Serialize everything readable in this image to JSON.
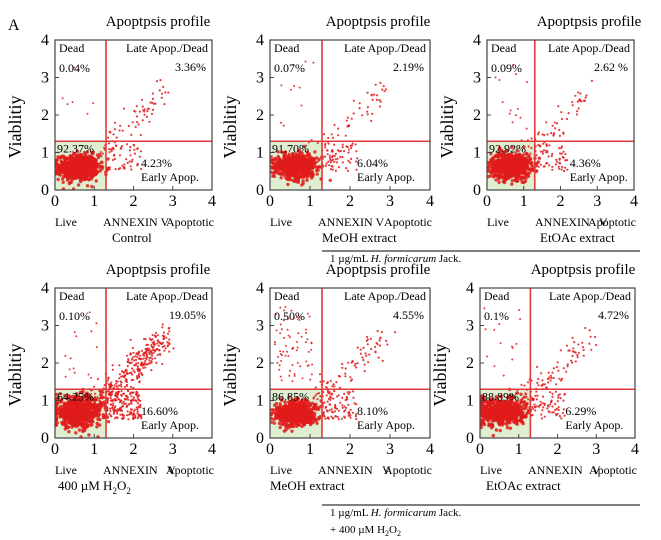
{
  "figure": {
    "panel_label": "A",
    "group_notes": [
      {
        "text": "1 µg/mL ",
        "italic": "H. formicarum",
        "tail": " Jack."
      },
      {
        "text": "1 µg/mL ",
        "italic": "H. formicarum",
        "tail": " Jack.",
        "line2_main": "+ 400 µM H",
        "line2_sub": "2",
        "line2_after": "O",
        "line2_sub2": "2"
      }
    ]
  },
  "colors": {
    "quadrant_line": "#e23a3a",
    "points": "#e01b1b",
    "live_fill": "#dfeed0",
    "frame": "#444444"
  },
  "chart_data": [
    {
      "type": "scatter",
      "title": "Apoptpsis profile",
      "ylabel": "Viablitiy",
      "x_ticks": [
        0,
        1,
        2,
        3,
        4
      ],
      "y_ticks": [
        0,
        1,
        2,
        3,
        4
      ],
      "xlim": [
        0,
        4
      ],
      "ylim": [
        0,
        4
      ],
      "gate": {
        "x": 1.3,
        "y": 1.3
      },
      "x_axis_labels": [
        "Live",
        "ANNEXIN V",
        "Apoptotic"
      ],
      "caption": {
        "main": "Control"
      },
      "quadrants": {
        "ul_label": "Dead",
        "ul_value": "0.04%",
        "ur_label": "Late Apop./Dead",
        "ur_value": "3.36%",
        "ll_value": "92.37%",
        "lr_value": "4.23%",
        "lr_label": "Early Apop."
      },
      "population": {
        "live_center": [
          0.6,
          0.6
        ],
        "spread": [
          0.25,
          0.17
        ],
        "late_tail": 0.034,
        "early": 0.042,
        "dead": 0.0004
      }
    },
    {
      "type": "scatter",
      "title": "Apoptpsis profile",
      "ylabel": "Viablitiy",
      "x_ticks": [
        0,
        1,
        2,
        3,
        4
      ],
      "y_ticks": [
        0,
        1,
        2,
        3,
        4
      ],
      "xlim": [
        0,
        4
      ],
      "ylim": [
        0,
        4
      ],
      "gate": {
        "x": 1.3,
        "y": 1.3
      },
      "x_axis_labels": [
        "Live",
        "ANNEXIN V",
        "Apoptotic"
      ],
      "caption": {
        "main": "MeOH extract"
      },
      "quadrants": {
        "ul_label": "Dead",
        "ul_value": "0.07%",
        "ur_label": "Late Apop./Dead",
        "ur_value": "2.19%",
        "ll_value": "91.70%",
        "lr_value": "6.04%",
        "lr_label": "Early Apop."
      },
      "population": {
        "live_center": [
          0.65,
          0.65
        ],
        "spread": [
          0.25,
          0.16
        ],
        "late_tail": 0.022,
        "early": 0.06,
        "dead": 0.0007
      }
    },
    {
      "type": "scatter",
      "title": "Apoptpsis profile",
      "ylabel": "Viablitiy",
      "x_ticks": [
        0,
        1,
        2,
        3,
        4
      ],
      "y_ticks": [
        0,
        1,
        2,
        3,
        4
      ],
      "xlim": [
        0,
        4
      ],
      "ylim": [
        0,
        4
      ],
      "gate": {
        "x": 1.3,
        "y": 1.3
      },
      "x_axis_labels": [
        "Live",
        "ANNEXIN",
        "V",
        "Apoptotic"
      ],
      "caption": {
        "main": "EtOAc extract"
      },
      "quadrants": {
        "ul_label": "Dead",
        "ul_value": "0.09%",
        "ur_label": "Late Apop./Dead",
        "ur_value": "2.62 %",
        "ll_value": "92.92%",
        "lr_value": "4.36%",
        "lr_label": "Early Apop."
      },
      "population": {
        "live_center": [
          0.65,
          0.65
        ],
        "spread": [
          0.27,
          0.17
        ],
        "late_tail": 0.026,
        "early": 0.044,
        "dead": 0.0009
      }
    },
    {
      "type": "scatter",
      "title": "Apoptpsis profile",
      "ylabel": "Viablitiy",
      "x_ticks": [
        0,
        1,
        2,
        3,
        4
      ],
      "y_ticks": [
        0,
        1,
        2,
        3,
        4
      ],
      "xlim": [
        0,
        4
      ],
      "ylim": [
        0,
        4
      ],
      "gate": {
        "x": 1.3,
        "y": 1.3
      },
      "x_axis_labels": [
        "Live",
        "ANNEXIN",
        "V",
        "Apoptotic"
      ],
      "caption": {
        "main": "400 µM H",
        "sub": "2",
        "after": "O",
        "sub2": "2"
      },
      "quadrants": {
        "ul_label": "Dead",
        "ul_value": "0.10%",
        "ur_label": "Late Apop./Dead",
        "ur_value": "19.05%",
        "ll_value": "64.25%",
        "lr_value": "16.60%",
        "lr_label": "Early Apop."
      },
      "population": {
        "live_center": [
          0.6,
          0.7
        ],
        "spread": [
          0.3,
          0.2
        ],
        "late_tail": 0.19,
        "early": 0.166,
        "dead": 0.001
      }
    },
    {
      "type": "scatter",
      "title": "Apoptpsis profile",
      "ylabel": "Viablitiy",
      "x_ticks": [
        0,
        1,
        2,
        3,
        4
      ],
      "y_ticks": [
        0,
        1,
        2,
        3,
        4
      ],
      "xlim": [
        0,
        4
      ],
      "ylim": [
        0,
        4
      ],
      "gate": {
        "x": 1.3,
        "y": 1.3
      },
      "x_axis_labels": [
        "Live",
        "ANNEXIN",
        "V",
        "Apoptotic"
      ],
      "caption": {
        "main": "MeOH extract"
      },
      "quadrants": {
        "ul_label": "Dead",
        "ul_value": "0.50%",
        "ur_label": "Late Apop./Dead",
        "ur_value": "4.55%",
        "ll_value": "86.85%",
        "lr_value": "8.10%",
        "lr_label": "Early Apop."
      },
      "population": {
        "live_center": [
          0.65,
          0.65
        ],
        "spread": [
          0.25,
          0.15
        ],
        "late_tail": 0.045,
        "early": 0.081,
        "dead": 0.005
      }
    },
    {
      "type": "scatter",
      "title": "Apoptpsis profile",
      "ylabel": "Viablitiy",
      "x_ticks": [
        0,
        1,
        2,
        3,
        4
      ],
      "y_ticks": [
        0,
        1,
        2,
        3,
        4
      ],
      "xlim": [
        0,
        4
      ],
      "ylim": [
        0,
        4
      ],
      "gate": {
        "x": 1.3,
        "y": 1.3
      },
      "x_axis_labels": [
        "Live",
        "ANNEXIN",
        "V",
        "Apoptotic"
      ],
      "caption": {
        "main": "EtOAc extract"
      },
      "quadrants": {
        "ul_label": "Dead",
        "ul_value": "0.1%",
        "ur_label": "Late Apop./Dead",
        "ur_value": "4.72%",
        "ll_value": "88.89%",
        "lr_value": "6.29%",
        "lr_label": "Early Apop."
      },
      "population": {
        "live_center": [
          0.55,
          0.7
        ],
        "spread": [
          0.3,
          0.18
        ],
        "late_tail": 0.047,
        "early": 0.063,
        "dead": 0.001
      }
    }
  ]
}
